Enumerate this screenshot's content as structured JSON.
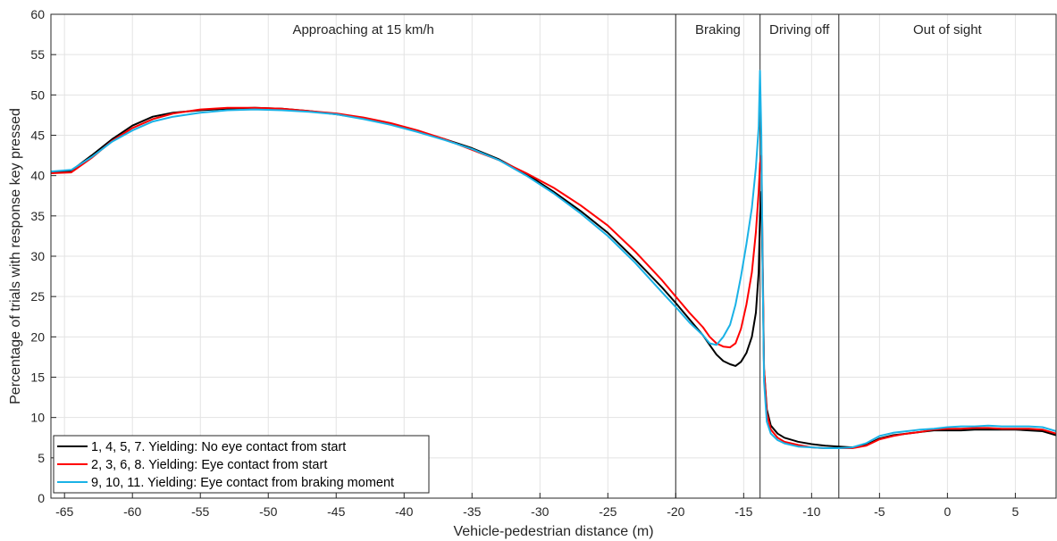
{
  "chart_data": {
    "type": "line",
    "xlabel": "Vehicle-pedestrian distance (m)",
    "ylabel": "Percentage of trials with response key pressed",
    "xlim": [
      -66,
      8
    ],
    "ylim": [
      0,
      60
    ],
    "xticks": [
      -65,
      -60,
      -55,
      -50,
      -45,
      -40,
      -35,
      -30,
      -25,
      -20,
      -15,
      -10,
      -5,
      0,
      5
    ],
    "yticks": [
      0,
      5,
      10,
      15,
      20,
      25,
      30,
      35,
      40,
      45,
      50,
      55,
      60
    ],
    "grid": true,
    "legend_position": "bottom-left",
    "phase_boundaries": [
      -20,
      -13.8,
      -8
    ],
    "phases": [
      {
        "label": "Approaching at 15 km/h",
        "x": -43
      },
      {
        "label": "Braking",
        "x": -16.9
      },
      {
        "label": "Driving off",
        "x": -10.9
      },
      {
        "label": "Out of sight",
        "x": 0
      }
    ],
    "series": [
      {
        "name": "1, 4, 5, 7. Yielding: No eye contact from start",
        "color": "#000000",
        "points": [
          [
            -66,
            40.3
          ],
          [
            -64.5,
            40.6
          ],
          [
            -63,
            42.5
          ],
          [
            -61.5,
            44.5
          ],
          [
            -60,
            46.2
          ],
          [
            -58.5,
            47.3
          ],
          [
            -57,
            47.8
          ],
          [
            -55,
            48.1
          ],
          [
            -53,
            48.3
          ],
          [
            -51,
            48.4
          ],
          [
            -49,
            48.3
          ],
          [
            -47,
            48.0
          ],
          [
            -45,
            47.6
          ],
          [
            -43,
            47.1
          ],
          [
            -41,
            46.4
          ],
          [
            -39,
            45.5
          ],
          [
            -37,
            44.5
          ],
          [
            -35,
            43.4
          ],
          [
            -33,
            42.0
          ],
          [
            -31,
            40.2
          ],
          [
            -29,
            38.0
          ],
          [
            -27,
            35.6
          ],
          [
            -25,
            32.9
          ],
          [
            -23,
            29.6
          ],
          [
            -21,
            26.1
          ],
          [
            -20,
            24.2
          ],
          [
            -19,
            22.2
          ],
          [
            -18,
            20.2
          ],
          [
            -17.5,
            19.0
          ],
          [
            -17,
            17.8
          ],
          [
            -16.5,
            17.0
          ],
          [
            -16,
            16.6
          ],
          [
            -15.6,
            16.4
          ],
          [
            -15.2,
            16.9
          ],
          [
            -14.8,
            18.0
          ],
          [
            -14.4,
            20.0
          ],
          [
            -14.1,
            23.0
          ],
          [
            -13.9,
            28.0
          ],
          [
            -13.8,
            35.0
          ],
          [
            -13.7,
            38.0
          ],
          [
            -13.6,
            28.0
          ],
          [
            -13.5,
            16.0
          ],
          [
            -13.3,
            11.0
          ],
          [
            -13.0,
            9.0
          ],
          [
            -12.5,
            8.0
          ],
          [
            -12,
            7.5
          ],
          [
            -11,
            7.0
          ],
          [
            -10,
            6.7
          ],
          [
            -9,
            6.5
          ],
          [
            -8,
            6.4
          ],
          [
            -7,
            6.3
          ],
          [
            -6,
            6.6
          ],
          [
            -5,
            7.4
          ],
          [
            -4,
            7.8
          ],
          [
            -3,
            8.0
          ],
          [
            -2,
            8.2
          ],
          [
            -1,
            8.4
          ],
          [
            0,
            8.4
          ],
          [
            1,
            8.4
          ],
          [
            2,
            8.5
          ],
          [
            3,
            8.5
          ],
          [
            4,
            8.5
          ],
          [
            5,
            8.5
          ],
          [
            6,
            8.4
          ],
          [
            7,
            8.3
          ],
          [
            8,
            7.8
          ]
        ]
      },
      {
        "name": "2, 3, 6, 8. Yielding: Eye contact from start",
        "color": "#ff0000",
        "points": [
          [
            -66,
            40.3
          ],
          [
            -64.5,
            40.4
          ],
          [
            -63,
            42.2
          ],
          [
            -61.5,
            44.3
          ],
          [
            -60,
            45.9
          ],
          [
            -58.5,
            47.0
          ],
          [
            -57,
            47.7
          ],
          [
            -55,
            48.2
          ],
          [
            -53,
            48.4
          ],
          [
            -51,
            48.4
          ],
          [
            -49,
            48.3
          ],
          [
            -47,
            48.0
          ],
          [
            -45,
            47.7
          ],
          [
            -43,
            47.2
          ],
          [
            -41,
            46.5
          ],
          [
            -39,
            45.6
          ],
          [
            -37,
            44.5
          ],
          [
            -35,
            43.2
          ],
          [
            -33,
            41.9
          ],
          [
            -31,
            40.3
          ],
          [
            -29,
            38.5
          ],
          [
            -27,
            36.3
          ],
          [
            -25,
            33.8
          ],
          [
            -23,
            30.6
          ],
          [
            -21,
            27.0
          ],
          [
            -20,
            25.0
          ],
          [
            -19,
            23.0
          ],
          [
            -18,
            21.2
          ],
          [
            -17.5,
            20.0
          ],
          [
            -17,
            19.2
          ],
          [
            -16.5,
            18.8
          ],
          [
            -16,
            18.7
          ],
          [
            -15.6,
            19.2
          ],
          [
            -15.2,
            21.0
          ],
          [
            -14.8,
            24.0
          ],
          [
            -14.4,
            28.0
          ],
          [
            -14.1,
            33.0
          ],
          [
            -13.9,
            38.0
          ],
          [
            -13.8,
            41.5
          ],
          [
            -13.7,
            42.5
          ],
          [
            -13.6,
            30.0
          ],
          [
            -13.5,
            16.0
          ],
          [
            -13.3,
            10.5
          ],
          [
            -13.0,
            8.5
          ],
          [
            -12.5,
            7.5
          ],
          [
            -12,
            7.0
          ],
          [
            -11,
            6.6
          ],
          [
            -10,
            6.3
          ],
          [
            -9,
            6.2
          ],
          [
            -8,
            6.2
          ],
          [
            -7,
            6.2
          ],
          [
            -6,
            6.5
          ],
          [
            -5,
            7.3
          ],
          [
            -4,
            7.7
          ],
          [
            -3,
            8.0
          ],
          [
            -2,
            8.2
          ],
          [
            -1,
            8.5
          ],
          [
            0,
            8.6
          ],
          [
            1,
            8.6
          ],
          [
            2,
            8.7
          ],
          [
            3,
            8.7
          ],
          [
            4,
            8.6
          ],
          [
            5,
            8.6
          ],
          [
            6,
            8.6
          ],
          [
            7,
            8.5
          ],
          [
            8,
            8.0
          ]
        ]
      },
      {
        "name": "9, 10, 11. Yielding: Eye contact from braking moment",
        "color": "#1ab2e6",
        "points": [
          [
            -66,
            40.5
          ],
          [
            -64.5,
            40.7
          ],
          [
            -63,
            42.3
          ],
          [
            -61.5,
            44.2
          ],
          [
            -60,
            45.6
          ],
          [
            -58.5,
            46.7
          ],
          [
            -57,
            47.3
          ],
          [
            -55,
            47.8
          ],
          [
            -53,
            48.1
          ],
          [
            -51,
            48.2
          ],
          [
            -49,
            48.1
          ],
          [
            -47,
            47.9
          ],
          [
            -45,
            47.6
          ],
          [
            -43,
            47.0
          ],
          [
            -41,
            46.3
          ],
          [
            -39,
            45.4
          ],
          [
            -37,
            44.4
          ],
          [
            -35,
            43.3
          ],
          [
            -33,
            41.9
          ],
          [
            -31,
            40.0
          ],
          [
            -29,
            37.8
          ],
          [
            -27,
            35.3
          ],
          [
            -25,
            32.5
          ],
          [
            -23,
            29.2
          ],
          [
            -21,
            25.5
          ],
          [
            -20,
            23.7
          ],
          [
            -19,
            21.8
          ],
          [
            -18,
            20.2
          ],
          [
            -17.5,
            19.2
          ],
          [
            -17,
            19.0
          ],
          [
            -16.5,
            20.0
          ],
          [
            -16,
            21.5
          ],
          [
            -15.6,
            24.0
          ],
          [
            -15.2,
            27.5
          ],
          [
            -14.8,
            31.5
          ],
          [
            -14.4,
            36.0
          ],
          [
            -14.1,
            41.0
          ],
          [
            -13.9,
            46.0
          ],
          [
            -13.8,
            53.0
          ],
          [
            -13.7,
            45.0
          ],
          [
            -13.6,
            28.0
          ],
          [
            -13.5,
            14.5
          ],
          [
            -13.3,
            9.5
          ],
          [
            -13.0,
            8.0
          ],
          [
            -12.5,
            7.2
          ],
          [
            -12,
            6.8
          ],
          [
            -11,
            6.4
          ],
          [
            -10,
            6.3
          ],
          [
            -9,
            6.2
          ],
          [
            -8,
            6.2
          ],
          [
            -7,
            6.3
          ],
          [
            -6,
            6.8
          ],
          [
            -5,
            7.7
          ],
          [
            -4,
            8.1
          ],
          [
            -3,
            8.3
          ],
          [
            -2,
            8.5
          ],
          [
            -1,
            8.6
          ],
          [
            0,
            8.8
          ],
          [
            1,
            8.9
          ],
          [
            2,
            8.9
          ],
          [
            3,
            9.0
          ],
          [
            4,
            8.9
          ],
          [
            5,
            8.9
          ],
          [
            6,
            8.9
          ],
          [
            7,
            8.8
          ],
          [
            8,
            8.3
          ]
        ]
      }
    ]
  }
}
